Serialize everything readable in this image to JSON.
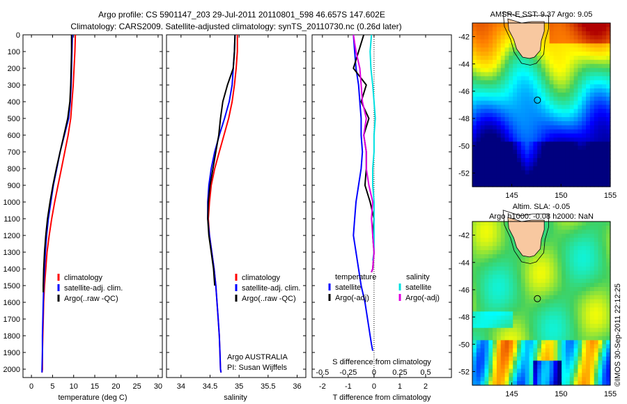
{
  "header": {
    "line1": "Argo profile: CS 5901147_203 29-Jul-2011 20110801_598 46.657S 147.602E",
    "line2": "Climatology: CARS2009. Satellite-adjusted climatology: synTS_20110730.nc (0.26d later)"
  },
  "chart_data": [
    {
      "type": "line",
      "panel": "temperature",
      "xlabel": "temperature (deg C)",
      "ylabel": "",
      "xlim": [
        -2,
        31
      ],
      "ylim": [
        2050,
        0
      ],
      "xticks": [
        "0",
        "5",
        "10",
        "15",
        "20",
        "25",
        "30"
      ],
      "yticks": [
        "0",
        "100",
        "200",
        "300",
        "400",
        "500",
        "600",
        "700",
        "800",
        "900",
        "1000",
        "1100",
        "1200",
        "1300",
        "1400",
        "1500",
        "1600",
        "1700",
        "1800",
        "1900",
        "2000"
      ],
      "legend": [
        "climatology",
        "satellite-adj. clim.",
        "Argo(..raw -QC)"
      ],
      "series": [
        {
          "name": "climatology",
          "color": "#ff0000",
          "x": [
            10.4,
            10.3,
            10.1,
            9.9,
            9.6,
            9.3,
            8.7,
            7.9,
            7.1,
            6.3,
            5.5,
            4.8,
            4.2,
            3.7,
            3.4,
            3.1,
            2.9,
            2.8,
            2.7,
            2.6,
            2.6,
            2.5
          ],
          "depth": [
            0,
            100,
            200,
            300,
            400,
            500,
            600,
            700,
            800,
            900,
            1000,
            1100,
            1200,
            1300,
            1400,
            1500,
            1600,
            1700,
            1800,
            1900,
            2000,
            2020
          ]
        },
        {
          "name": "satellite-adj. clim.",
          "color": "#0000ff",
          "x": [
            9.7,
            9.6,
            9.5,
            9.4,
            9.2,
            8.8,
            7.8,
            6.8,
            6.0,
            5.2,
            4.6,
            4.0,
            3.6,
            3.3,
            3.1,
            2.9,
            2.8,
            2.7,
            2.6,
            2.6,
            2.5,
            2.5
          ],
          "depth": [
            0,
            100,
            200,
            300,
            400,
            500,
            600,
            700,
            800,
            900,
            1000,
            1100,
            1200,
            1300,
            1400,
            1500,
            1600,
            1700,
            1800,
            1900,
            2000,
            2020
          ]
        },
        {
          "name": "Argo(..raw -QC)",
          "color": "#000000",
          "x": [
            9.5,
            9.5,
            9.4,
            9.3,
            9.1,
            8.6,
            7.7,
            6.8,
            5.9,
            5.1,
            4.4,
            3.8,
            3.4,
            3.1,
            2.9,
            2.8,
            2.8
          ],
          "depth": [
            0,
            100,
            200,
            300,
            400,
            500,
            600,
            700,
            800,
            900,
            1000,
            1100,
            1200,
            1300,
            1400,
            1500,
            1540
          ]
        }
      ]
    },
    {
      "type": "line",
      "panel": "salinity",
      "xlabel": "salinity",
      "xlim": [
        33.75,
        36.15
      ],
      "ylim": [
        2050,
        0
      ],
      "xticks": [
        "34",
        "34.5",
        "35",
        "35.5",
        "36"
      ],
      "legend": [
        "climatology",
        "satellite-adj. clim.",
        "Argo(..raw -QC)"
      ],
      "annotation": [
        "Argo AUSTRALIA",
        "PI: Susan Wijffels"
      ],
      "series": [
        {
          "name": "climatology",
          "color": "#ff0000",
          "x": [
            34.97,
            34.97,
            34.95,
            34.92,
            34.88,
            34.82,
            34.74,
            34.66,
            34.58,
            34.52,
            34.49,
            34.47,
            34.49,
            34.53,
            34.57,
            34.6,
            34.62,
            34.64,
            34.66,
            34.67,
            34.68,
            34.69
          ],
          "depth": [
            0,
            100,
            200,
            300,
            400,
            500,
            600,
            700,
            800,
            900,
            1000,
            1100,
            1200,
            1300,
            1400,
            1500,
            1600,
            1700,
            1800,
            1900,
            2000,
            2020
          ]
        },
        {
          "name": "satellite-adj. clim.",
          "color": "#0000ff",
          "x": [
            34.93,
            34.92,
            34.9,
            34.88,
            34.83,
            34.75,
            34.66,
            34.58,
            34.52,
            34.48,
            34.46,
            34.46,
            34.49,
            34.53,
            34.57,
            34.6,
            34.62,
            34.64,
            34.66,
            34.67,
            34.68,
            34.69
          ],
          "depth": [
            0,
            100,
            200,
            300,
            400,
            500,
            600,
            700,
            800,
            900,
            1000,
            1100,
            1200,
            1300,
            1400,
            1500,
            1600,
            1700,
            1800,
            1900,
            2000,
            2020
          ]
        },
        {
          "name": "Argo(..raw -QC)",
          "color": "#000000",
          "x": [
            34.93,
            34.92,
            34.9,
            34.8,
            34.72,
            34.68,
            34.65,
            34.6,
            34.55,
            34.5,
            34.47,
            34.46,
            34.48,
            34.52,
            34.56,
            34.58
          ],
          "depth": [
            0,
            100,
            200,
            300,
            400,
            500,
            600,
            700,
            800,
            900,
            1000,
            1100,
            1200,
            1300,
            1400,
            1500
          ]
        }
      ]
    },
    {
      "type": "line",
      "panel": "difference",
      "xlabel": "T difference from climatology",
      "xlabel_top": "S difference from climatology",
      "xlim": [
        -2.4,
        3
      ],
      "ylim": [
        2050,
        0
      ],
      "xticks": [
        "-2",
        "-1",
        "0",
        "1",
        "2"
      ],
      "xticks_top": [
        "-0.5",
        "-0.25",
        "0",
        "0.25",
        "0.5"
      ],
      "legend_titles": [
        "temperature",
        "salinity"
      ],
      "legend": [
        "satellite",
        "Argo(-adj)",
        "satellite",
        "Argo(-adj)"
      ],
      "series": [
        {
          "name": "temperature satellite",
          "color": "#0000ff",
          "x": [
            -0.8,
            -0.75,
            -0.7,
            -0.6,
            -0.55,
            -0.5,
            -0.5,
            -0.45,
            -0.5,
            -0.6,
            -0.7,
            -0.75,
            -0.8,
            -0.7,
            -0.6,
            -0.5,
            -0.35,
            -0.25,
            -0.15,
            -0.1,
            -0.05
          ],
          "depth": [
            0,
            100,
            200,
            300,
            400,
            500,
            600,
            700,
            800,
            900,
            1000,
            1100,
            1200,
            1300,
            1400,
            1500,
            1600,
            1700,
            1800,
            1850,
            1890
          ]
        },
        {
          "name": "temperature Argo(-adj)",
          "color": "#000000",
          "x": [
            -0.4,
            -0.6,
            -0.8,
            -0.3,
            -0.5,
            -0.2,
            -0.4,
            -0.3,
            -0.3,
            -0.35,
            -0.15,
            0.0,
            -0.05,
            0.0,
            -0.05,
            -0.1
          ],
          "depth": [
            0,
            100,
            200,
            300,
            400,
            500,
            600,
            700,
            800,
            900,
            1000,
            1100,
            1200,
            1300,
            1400,
            1420
          ]
        },
        {
          "name": "salinity satellite",
          "color": "#00e0e0",
          "x": [
            -0.1,
            -0.15,
            -0.12,
            -0.05,
            0.0,
            0.05,
            0.0,
            0.0,
            -0.05,
            -0.05,
            0.0,
            0.0,
            0.0,
            0.0,
            -0.05
          ],
          "depth": [
            0,
            100,
            200,
            300,
            400,
            500,
            600,
            700,
            800,
            900,
            1000,
            1100,
            1200,
            1300,
            1350
          ]
        },
        {
          "name": "salinity Argo(-adj)",
          "color": "#e000e0",
          "x": [
            -0.8,
            -0.7,
            -0.55,
            -0.5,
            -0.45,
            -0.3,
            -0.4,
            -0.3,
            -0.3,
            -0.2,
            -0.05,
            -0.1,
            -0.05,
            0.0,
            -0.05,
            -0.1
          ],
          "depth": [
            0,
            100,
            200,
            300,
            400,
            500,
            600,
            700,
            800,
            900,
            1000,
            1100,
            1200,
            1300,
            1400,
            1420
          ]
        }
      ]
    },
    {
      "type": "heatmap",
      "panel": "sst map",
      "title": "AMSR-E SST: 9.37 Argo: 9.05",
      "xlim": [
        141,
        155
      ],
      "ylim": [
        -53,
        -41
      ],
      "xticks": [
        "145",
        "150",
        "155"
      ],
      "yticks": [
        "-42",
        "-44",
        "-46",
        "-48",
        "-50",
        "-52"
      ],
      "marker": {
        "lon": 147.602,
        "lat": -46.657
      }
    },
    {
      "type": "heatmap",
      "panel": "sla map",
      "title_line1": "Altim. SLA: -0.05",
      "title_line2": "Argo h1000: -0.08 h2000: NaN",
      "xlim": [
        141,
        155
      ],
      "ylim": [
        -53,
        -41
      ],
      "xticks": [
        "145",
        "150",
        "155"
      ],
      "yticks": [
        "-42",
        "-44",
        "-46",
        "-48",
        "-50",
        "-52"
      ],
      "marker": {
        "lon": 147.602,
        "lat": -46.657
      }
    }
  ],
  "footer": {
    "credit": "©IMOS 30-Sep-2011 22:12:25"
  },
  "colors": {
    "red": "#ff0000",
    "blue": "#0000ff",
    "black": "#000000",
    "cyan": "#00e0e0",
    "magenta": "#e000e0",
    "land": "#f8c8a0"
  }
}
